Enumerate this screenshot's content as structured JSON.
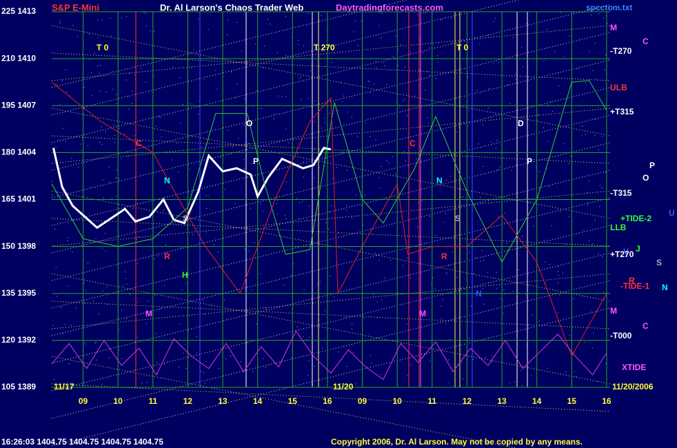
{
  "chart_data": {
    "type": "line",
    "symbol": "S&P E-Mini",
    "title": "Dr. Al Larson's Chaos Trader Web",
    "website": "Daytradingforecasts.com",
    "file": "spcctom.txt",
    "status": "16:26:03 1404.75 1404.75 1404.75 1404.75",
    "copyright": "Copyright 2006, Dr. Al Larson. May not be copied by any means.",
    "ylim": [
      1389,
      1413
    ],
    "yticks": [
      {
        "value": 1413,
        "label": "225 1413"
      },
      {
        "value": 1410,
        "label": "210 1410"
      },
      {
        "value": 1407,
        "label": "195 1407"
      },
      {
        "value": 1404,
        "label": "180 1404"
      },
      {
        "value": 1401,
        "label": "165 1401"
      },
      {
        "value": 1398,
        "label": "150 1398"
      },
      {
        "value": 1395,
        "label": "135 1395"
      },
      {
        "value": 1392,
        "label": "120 1392"
      },
      {
        "value": 1389,
        "label": "105 1389"
      }
    ],
    "xlim": [
      8.1,
      24.1
    ],
    "xticks": [
      {
        "value": 9,
        "label": "09"
      },
      10,
      11,
      12,
      13,
      14,
      15,
      16,
      {
        "value": 17,
        "label": "09"
      },
      {
        "value": 18,
        "label": "10"
      },
      {
        "value": 19,
        "label": "11"
      },
      {
        "value": 20,
        "label": "12"
      },
      {
        "value": 21,
        "label": "13"
      },
      {
        "value": 22,
        "label": "14"
      },
      {
        "value": 23,
        "label": "15"
      },
      {
        "value": 24,
        "label": "16"
      }
    ],
    "grid": true,
    "series": [
      {
        "color": "#ffffff",
        "x": [
          8.15,
          8.4,
          8.7,
          9.0,
          9.4,
          9.8,
          10.2,
          10.5,
          10.9,
          11.3,
          11.6,
          11.9,
          12.3,
          12.6,
          13.0,
          13.4,
          13.8,
          14.0,
          14.3,
          14.7,
          15.0,
          15.3,
          15.6,
          15.9,
          16.1
        ],
        "values": [
          1404.3,
          1401.8,
          1400.6,
          1400.0,
          1399.2,
          1399.8,
          1400.4,
          1399.6,
          1399.9,
          1401.0,
          1399.7,
          1399.5,
          1401.5,
          1403.8,
          1402.8,
          1403.0,
          1402.6,
          1401.2,
          1402.4,
          1403.6,
          1403.3,
          1403.0,
          1403.2,
          1404.3,
          1404.2
        ]
      },
      {
        "color": "#33cc33",
        "x": [
          8.1,
          9,
          10,
          11,
          12,
          12.8,
          13.7,
          14.2,
          14.8,
          15.5,
          16.2,
          17,
          17.6,
          18.5,
          19.1,
          20,
          21,
          22,
          23,
          23.5,
          24
        ],
        "values": [
          1402,
          1398.5,
          1398,
          1398.5,
          1400.5,
          1406.5,
          1406.5,
          1402,
          1397.5,
          1397.8,
          1407.2,
          1401,
          1399.5,
          1403,
          1406.3,
          1401.5,
          1397,
          1401,
          1408.5,
          1408.6,
          1406.7
        ]
      },
      {
        "color": "#dd2222",
        "x": [
          8.1,
          9.5,
          11,
          12,
          12.5,
          13.5,
          14.5,
          15.5,
          16.1,
          16.3,
          17,
          18,
          18.3,
          19,
          20,
          21,
          22,
          23,
          24
        ],
        "values": [
          1408.5,
          1406,
          1404,
          1400,
          1398,
          1395,
          1401,
          1406,
          1407.5,
          1395,
          1398,
          1402,
          1397.5,
          1398,
          1398,
          1400,
          1397,
          1391,
          1395
        ]
      },
      {
        "color": "#dd33dd",
        "x": [
          8.1,
          8.6,
          9.1,
          9.6,
          10.1,
          10.6,
          11.1,
          11.6,
          12.1,
          12.6,
          13.1,
          13.6,
          14.1,
          14.6,
          15.1,
          15.6,
          16.1,
          16.6,
          17.1,
          17.6,
          18.1,
          18.6,
          19.1,
          19.6,
          20.1,
          20.6,
          21.1,
          21.6,
          22.1,
          22.6,
          23.1,
          23.6,
          24.0
        ],
        "values": [
          1390.5,
          1391.8,
          1390.2,
          1392.0,
          1390.4,
          1391.5,
          1389.8,
          1392.1,
          1391.0,
          1390.2,
          1391.8,
          1390.0,
          1391.6,
          1390.3,
          1392.6,
          1391.0,
          1389.9,
          1391.4,
          1390.3,
          1389.5,
          1391.8,
          1390.6,
          1391.9,
          1390.0,
          1391.5,
          1390.4,
          1392.0,
          1390.2,
          1391.3,
          1392.4,
          1391.0,
          1389.8,
          1391.2
        ]
      }
    ],
    "day_labels": [
      "11/17",
      "11/20",
      "11/20/2006"
    ],
    "annotations": [
      "T 0",
      "T 270",
      "T 0",
      "C",
      "O",
      "P",
      "N",
      "S",
      "R",
      "H",
      "M",
      "C",
      "N",
      "S",
      "R",
      "N",
      "M",
      "D",
      "P",
      "M",
      "C",
      "-T270",
      "ULB",
      "+T315",
      "P",
      "O",
      "-T315",
      "+TIDE-2",
      "U",
      "LLB",
      "V",
      "J",
      "+T270",
      "S",
      "R",
      "-TIDE-1",
      "N",
      "M",
      "C",
      "-T000",
      "XTIDE"
    ]
  }
}
